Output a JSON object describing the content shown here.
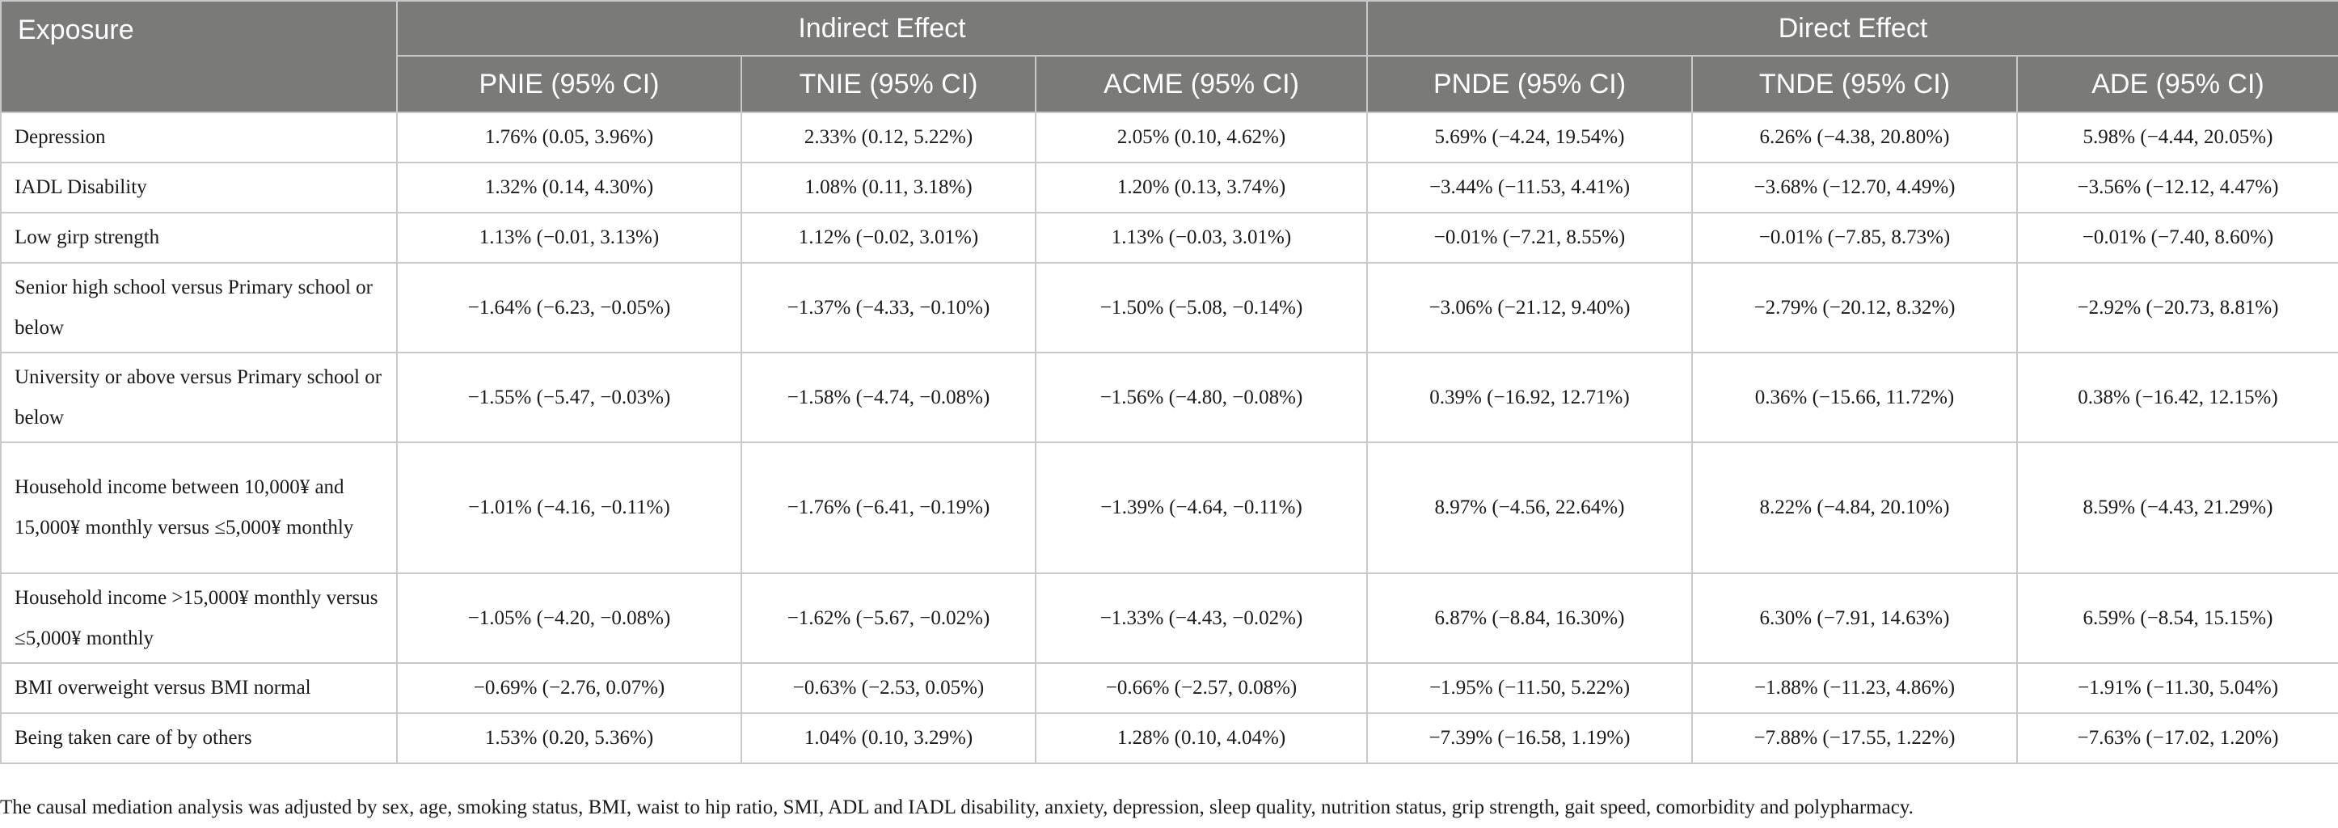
{
  "header": {
    "exposure": "Exposure",
    "indirect_effect": "Indirect Effect",
    "direct_effect": "Direct Effect",
    "columns": [
      "PNIE (95% CI)",
      "TNIE (95% CI)",
      "ACME (95% CI)",
      "PNDE (95% CI)",
      "TNDE (95% CI)",
      "ADE (95% CI)"
    ]
  },
  "rows": [
    {
      "exposure": "Depression",
      "values": [
        "1.76% (0.05, 3.96%)",
        "2.33% (0.12, 5.22%)",
        "2.05% (0.10, 4.62%)",
        "5.69% (−4.24, 19.54%)",
        "6.26% (−4.38, 20.80%)",
        "5.98% (−4.44, 20.05%)"
      ]
    },
    {
      "exposure": "IADL Disability",
      "values": [
        "1.32% (0.14, 4.30%)",
        "1.08% (0.11, 3.18%)",
        "1.20% (0.13, 3.74%)",
        "−3.44% (−11.53, 4.41%)",
        "−3.68% (−12.70, 4.49%)",
        "−3.56% (−12.12, 4.47%)"
      ]
    },
    {
      "exposure": "Low girp strength",
      "values": [
        "1.13% (−0.01, 3.13%)",
        "1.12% (−0.02, 3.01%)",
        "1.13% (−0.03, 3.01%)",
        "−0.01% (−7.21, 8.55%)",
        "−0.01% (−7.85, 8.73%)",
        "−0.01% (−7.40, 8.60%)"
      ]
    },
    {
      "exposure": "Senior high school versus Primary school or below",
      "values": [
        "−1.64% (−6.23, −0.05%)",
        "−1.37% (−4.33, −0.10%)",
        "−1.50% (−5.08, −0.14%)",
        "−3.06% (−21.12, 9.40%)",
        "−2.79% (−20.12, 8.32%)",
        "−2.92% (−20.73, 8.81%)"
      ]
    },
    {
      "exposure": "University or above versus Primary school or below",
      "values": [
        "−1.55% (−5.47, −0.03%)",
        "−1.58% (−4.74, −0.08%)",
        "−1.56% (−4.80, −0.08%)",
        "0.39% (−16.92, 12.71%)",
        "0.36% (−15.66, 11.72%)",
        "0.38% (−16.42, 12.15%)"
      ]
    },
    {
      "exposure": "Household income between 10,000¥ and 15,000¥ monthly versus ≤5,000¥ monthly",
      "values": [
        "−1.01% (−4.16, −0.11%)",
        "−1.76% (−6.41, −0.19%)",
        "−1.39% (−4.64, −0.11%)",
        "8.97% (−4.56, 22.64%)",
        "8.22% (−4.84, 20.10%)",
        "8.59% (−4.43, 21.29%)"
      ]
    },
    {
      "exposure": "Household income >15,000¥ monthly versus ≤5,000¥ monthly",
      "values": [
        "−1.05% (−4.20, −0.08%)",
        "−1.62% (−5.67, −0.02%)",
        "−1.33% (−4.43, −0.02%)",
        "6.87% (−8.84, 16.30%)",
        "6.30% (−7.91, 14.63%)",
        "6.59% (−8.54, 15.15%)"
      ]
    },
    {
      "exposure": "BMI overweight versus BMI normal",
      "values": [
        "−0.69% (−2.76, 0.07%)",
        "−0.63% (−2.53, 0.05%)",
        "−0.66% (−2.57, 0.08%)",
        "−1.95% (−11.50, 5.22%)",
        "−1.88% (−11.23, 4.86%)",
        "−1.91% (−11.30, 5.04%)"
      ]
    },
    {
      "exposure": "Being taken care of by others",
      "values": [
        "1.53% (0.20, 5.36%)",
        "1.04% (0.10, 3.29%)",
        "1.28% (0.10, 4.04%)",
        "−7.39% (−16.58, 1.19%)",
        "−7.88% (−17.55, 1.22%)",
        "−7.63% (−17.02, 1.20%)"
      ]
    }
  ],
  "footnote": "The causal mediation analysis was adjusted by sex, age, smoking status, BMI, waist to hip ratio, SMI, ADL and IADL disability, anxiety, depression, sleep quality, nutrition status, grip strength, gait speed, comorbidity and polypharmacy."
}
